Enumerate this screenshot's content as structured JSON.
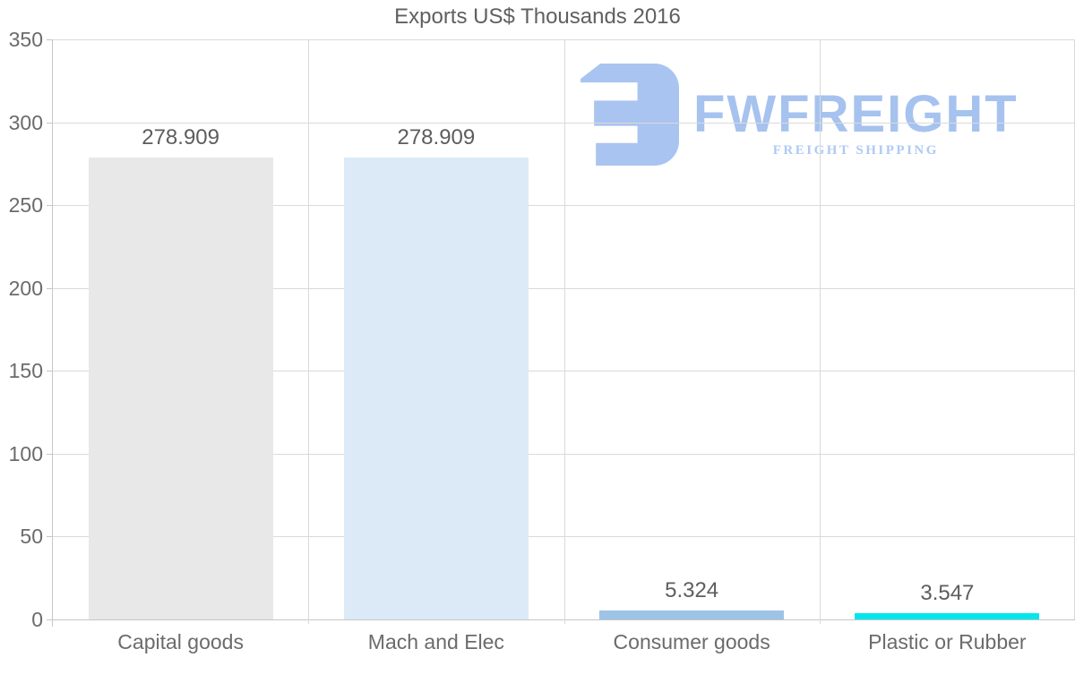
{
  "logo": {
    "name": "FWFREIGHT",
    "tagline": "FREIGHT SHIPPING",
    "icon": "fwfreight-mark-icon",
    "mark_color": "#a9c4f0",
    "text_color": "#a6c2ef",
    "tagline_color": "#aecaf3"
  },
  "chart_data": {
    "type": "bar",
    "title": "Exports US$ Thousands 2016",
    "categories": [
      "Capital goods",
      "Mach and Elec",
      "Consumer goods",
      "Plastic or Rubber"
    ],
    "values": [
      278.909,
      278.909,
      5.324,
      3.547
    ],
    "value_labels": [
      "278.909",
      "278.909",
      "5.324",
      "3.547"
    ],
    "bar_colors": [
      "#e8e8e8",
      "#dceaf7",
      "#9dc3e6",
      "#04e6ec"
    ],
    "xlabel": "",
    "ylabel": "",
    "ylim": [
      0,
      350
    ],
    "yticks": [
      0,
      50,
      100,
      150,
      200,
      250,
      300,
      350
    ],
    "grid": true,
    "legend": false,
    "colors": {
      "gridline": "#dadada",
      "axis": "#c6c6c6",
      "title_text": "#606060",
      "tick_text": "#6b6b6b",
      "value_text": "#5d5d5d"
    }
  }
}
